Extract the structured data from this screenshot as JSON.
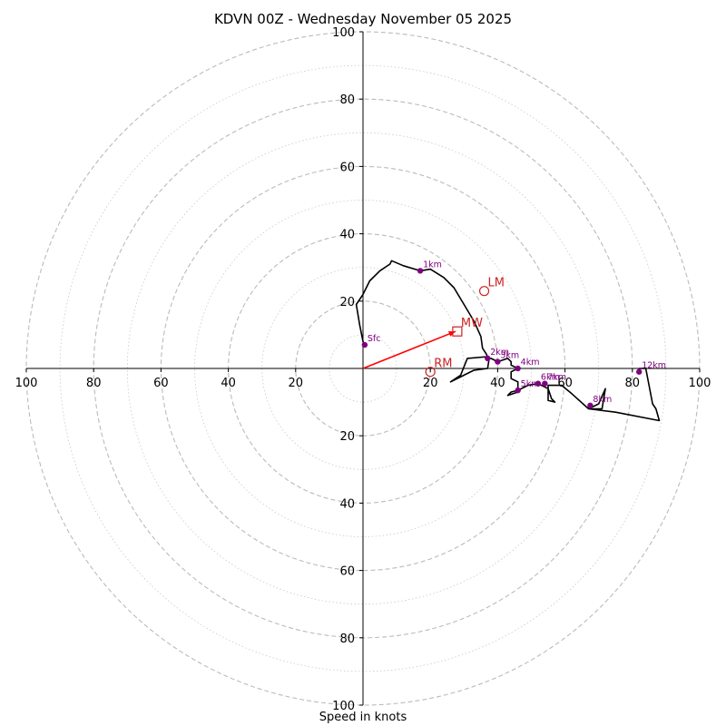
{
  "chart_data": {
    "type": "hodograph",
    "title": "KDVN 00Z - Wednesday November 05 2025",
    "xlabel": "Speed in knots",
    "max_speed": 100,
    "ring_step": 10,
    "tick_labels": [
      "100",
      "80",
      "60",
      "40",
      "20",
      "20",
      "40",
      "60",
      "80",
      "100"
    ],
    "tick_values": [
      -100,
      -80,
      -60,
      -40,
      -20,
      20,
      40,
      60,
      80,
      100
    ],
    "colors": {
      "trace": "#000000",
      "markers": "#800080",
      "motion": "#cc2222",
      "shear": "#ff0000",
      "rings": "#bbbbbb"
    },
    "trace": [
      [
        0.5,
        7
      ],
      [
        0,
        8
      ],
      [
        -1,
        13
      ],
      [
        -2,
        19
      ],
      [
        0,
        22
      ],
      [
        2,
        26
      ],
      [
        5,
        29
      ],
      [
        8,
        31
      ],
      [
        8.5,
        32
      ],
      [
        12,
        30.5
      ],
      [
        17,
        29
      ],
      [
        20,
        29.5
      ],
      [
        24,
        27
      ],
      [
        27,
        24
      ],
      [
        30,
        19
      ],
      [
        33,
        14
      ],
      [
        35,
        9.5
      ],
      [
        35.5,
        6
      ],
      [
        36.5,
        4.5
      ],
      [
        37,
        3.5
      ],
      [
        31,
        3
      ],
      [
        30,
        0.5
      ],
      [
        29,
        -2
      ],
      [
        26,
        -4
      ],
      [
        30,
        -2
      ],
      [
        33,
        -0.5
      ],
      [
        37,
        0
      ],
      [
        37.5,
        3
      ],
      [
        38,
        3
      ],
      [
        40,
        2
      ],
      [
        43,
        3
      ],
      [
        44,
        2
      ],
      [
        44,
        1
      ],
      [
        46,
        0
      ],
      [
        44,
        -1
      ],
      [
        44,
        -3
      ],
      [
        46,
        -4
      ],
      [
        46,
        -7
      ],
      [
        43,
        -8
      ],
      [
        44,
        -7
      ],
      [
        46,
        -6.5
      ],
      [
        49,
        -5
      ],
      [
        52,
        -4.5
      ],
      [
        53,
        -5
      ],
      [
        55,
        -6
      ],
      [
        56,
        -9
      ],
      [
        57,
        -10
      ],
      [
        55,
        -9.5
      ],
      [
        55,
        -5
      ],
      [
        57,
        -5
      ],
      [
        59,
        -5
      ],
      [
        62,
        -7.5
      ],
      [
        67,
        -12
      ],
      [
        70,
        -10.5
      ],
      [
        72,
        -6
      ],
      [
        71,
        -12
      ],
      [
        67,
        -12
      ],
      [
        75,
        -13
      ],
      [
        88,
        -15.5
      ],
      [
        87,
        -12
      ],
      [
        86,
        -10.5
      ],
      [
        84,
        0
      ],
      [
        82,
        0
      ]
    ],
    "height_markers": [
      {
        "label": "Sfc",
        "u": 0.5,
        "v": 7
      },
      {
        "label": "1km",
        "u": 17,
        "v": 29
      },
      {
        "label": "2km",
        "u": 37,
        "v": 3
      },
      {
        "label": "3km",
        "u": 40,
        "v": 2
      },
      {
        "label": "4km",
        "u": 46,
        "v": 0
      },
      {
        "label": "5km",
        "u": 46,
        "v": -6.5
      },
      {
        "label": "6km",
        "u": 52,
        "v": -4.5
      },
      {
        "label": "7km",
        "u": 54,
        "v": -4.5
      },
      {
        "label": "8km",
        "u": 67.5,
        "v": -11
      },
      {
        "label": "12km",
        "u": 82,
        "v": -1
      }
    ],
    "storm_motion": [
      {
        "label": "LM",
        "u": 36,
        "v": 23,
        "marker": "circle"
      },
      {
        "label": "MW",
        "u": 28,
        "v": 11,
        "marker": "square"
      },
      {
        "label": "RM",
        "u": 20,
        "v": -1,
        "marker": "circle"
      }
    ],
    "shear_vector": {
      "from": [
        0,
        0
      ],
      "to": [
        27.5,
        11
      ]
    }
  }
}
